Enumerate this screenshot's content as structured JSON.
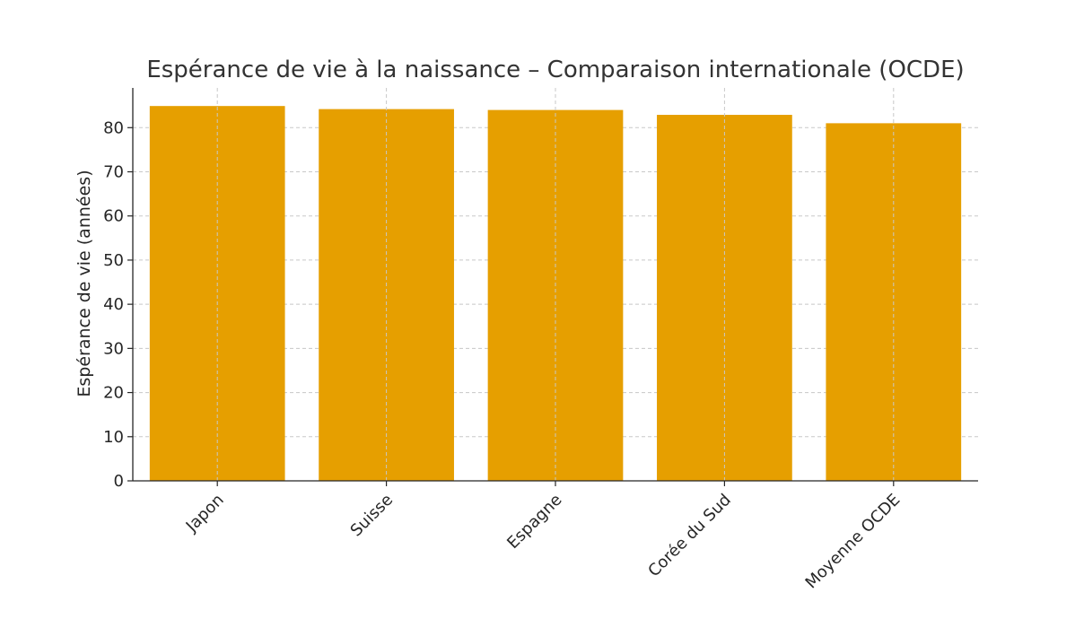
{
  "chart_data": {
    "type": "bar",
    "title": "Espérance de vie à la naissance – Comparaison internationale (OCDE)",
    "xlabel": "",
    "ylabel": "Espérance de vie (années)",
    "categories": [
      "Japon",
      "Suisse",
      "Espagne",
      "Corée du Sud",
      "Moyenne OCDE"
    ],
    "values": [
      84.9,
      84.2,
      84.0,
      82.9,
      81.0
    ],
    "ylim": [
      0,
      89
    ],
    "yticks": [
      0,
      10,
      20,
      30,
      40,
      50,
      60,
      70,
      80
    ],
    "grid": true,
    "bar_color": "#E69F00"
  }
}
